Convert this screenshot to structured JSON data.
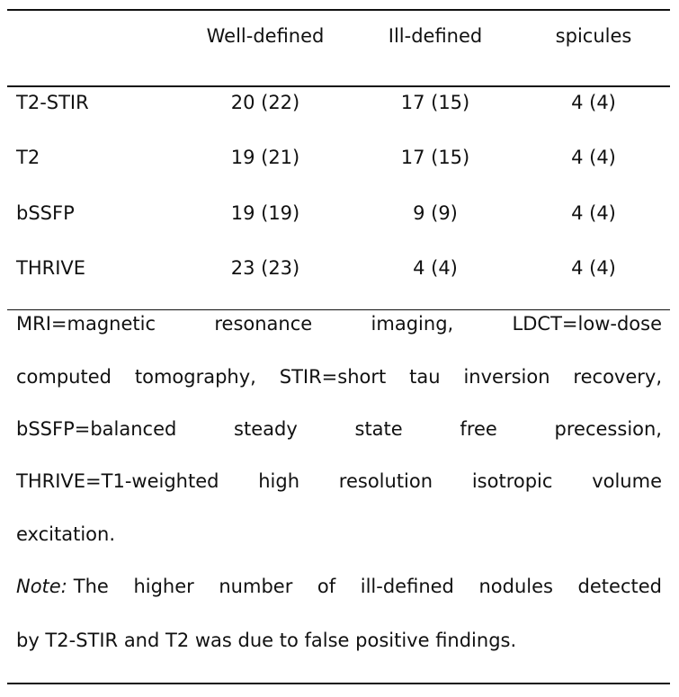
{
  "table": {
    "headers": [
      "",
      "Well-defined",
      "Ill-defined",
      "spicules"
    ],
    "rows": [
      {
        "label": "T2-STIR",
        "well_defined": "20 (22)",
        "ill_defined": "17 (15)",
        "spicules": "4 (4)"
      },
      {
        "label": "T2",
        "well_defined": "19 (21)",
        "ill_defined": "17 (15)",
        "spicules": "4 (4)"
      },
      {
        "label": "bSSFP",
        "well_defined": "19 (19)",
        "ill_defined": "9 (9)",
        "spicules": "4 (4)"
      },
      {
        "label": "THRIVE",
        "well_defined": "23 (23)",
        "ill_defined": "4 (4)",
        "spicules": "4 (4)"
      }
    ]
  },
  "footnote": {
    "abbreviation_lines": [
      "MRI=magnetic resonance imaging, LDCT=low-dose",
      "computed tomography, STIR=short tau inversion recovery,",
      "bSSFP=balanced steady state free precession,",
      "THRIVE=T1-weighted high resolution isotropic volume",
      "excitation."
    ],
    "note_label": "Note:",
    "note_lines": [
      "The higher number of ill-defined nodules detected",
      "by T2-STIR and T2 was due to false positive findings."
    ]
  }
}
